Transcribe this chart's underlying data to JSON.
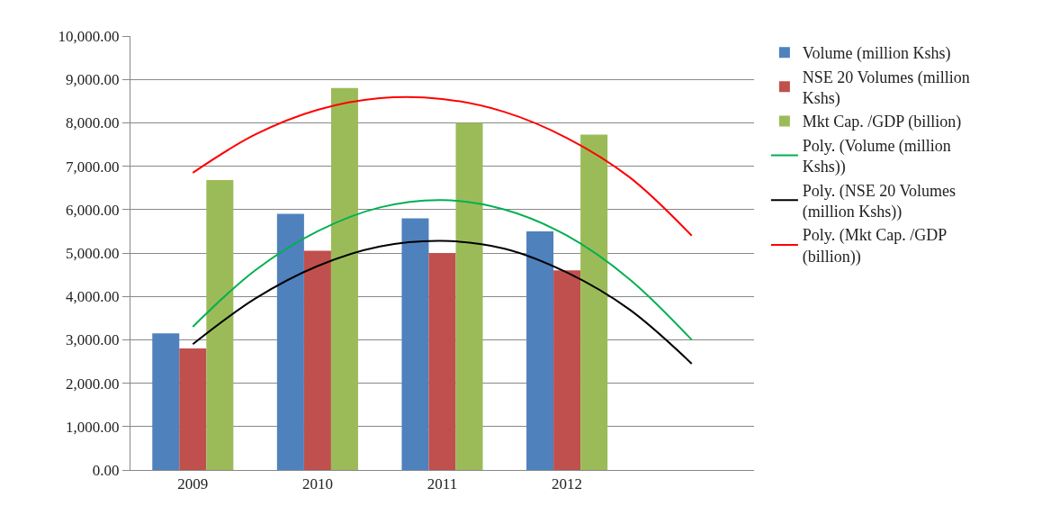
{
  "chart_data": {
    "type": "bar",
    "x": [
      2009,
      2010,
      2011,
      2012
    ],
    "xlim": [
      2008.5,
      2013.5
    ],
    "xticks": [
      2009,
      2010,
      2011,
      2012
    ],
    "ylim": [
      0,
      10000
    ],
    "yticks": [
      {
        "value": 0,
        "label": "0.00"
      },
      {
        "value": 1000,
        "label": "1,000.00"
      },
      {
        "value": 2000,
        "label": "2,000.00"
      },
      {
        "value": 3000,
        "label": "3,000.00"
      },
      {
        "value": 4000,
        "label": "4,000.00"
      },
      {
        "value": 5000,
        "label": "5,000.00"
      },
      {
        "value": 6000,
        "label": "6,000.00"
      },
      {
        "value": 7000,
        "label": "7,000.00"
      },
      {
        "value": 8000,
        "label": "8,000.00"
      },
      {
        "value": 9000,
        "label": "9,000.00"
      },
      {
        "value": 10000,
        "label": "10,000.00"
      }
    ],
    "grid": "y",
    "legend": "right",
    "series": [
      {
        "name": "Volume (million Kshs)",
        "color": "#4f81bd",
        "values": [
          3150,
          5900,
          5800,
          5500
        ]
      },
      {
        "name": "NSE 20 Volumes (million Kshs)",
        "color": "#c0504d",
        "values": [
          2800,
          5050,
          5000,
          4600
        ]
      },
      {
        "name": "Mkt Cap. /GDP (billion)",
        "color": "#9bbb59",
        "values": [
          6680,
          8800,
          8000,
          7730
        ]
      },
      {
        "name": "Poly. (Volume (million Kshs))",
        "type": "line",
        "color": "#00b050",
        "x": [
          2009,
          2009.5,
          2010,
          2010.5,
          2011,
          2011.5,
          2012,
          2012.5,
          2013
        ],
        "values": [
          3300,
          4600,
          5500,
          6050,
          6220,
          6000,
          5400,
          4400,
          3000
        ]
      },
      {
        "name": "Poly. (NSE 20 Volumes (million Kshs))",
        "type": "line",
        "color": "#000000",
        "x": [
          2009,
          2009.5,
          2010,
          2010.5,
          2011,
          2011.5,
          2012,
          2012.5,
          2013
        ],
        "values": [
          2900,
          3950,
          4700,
          5150,
          5280,
          5100,
          4550,
          3700,
          2450
        ]
      },
      {
        "name": "Poly. (Mkt Cap. /GDP (billion))",
        "type": "line",
        "color": "#ff0000",
        "x": [
          2009,
          2009.5,
          2010,
          2010.5,
          2011,
          2011.5,
          2012,
          2012.5,
          2013
        ],
        "values": [
          6850,
          7730,
          8300,
          8570,
          8550,
          8250,
          7650,
          6750,
          5400
        ]
      }
    ]
  }
}
